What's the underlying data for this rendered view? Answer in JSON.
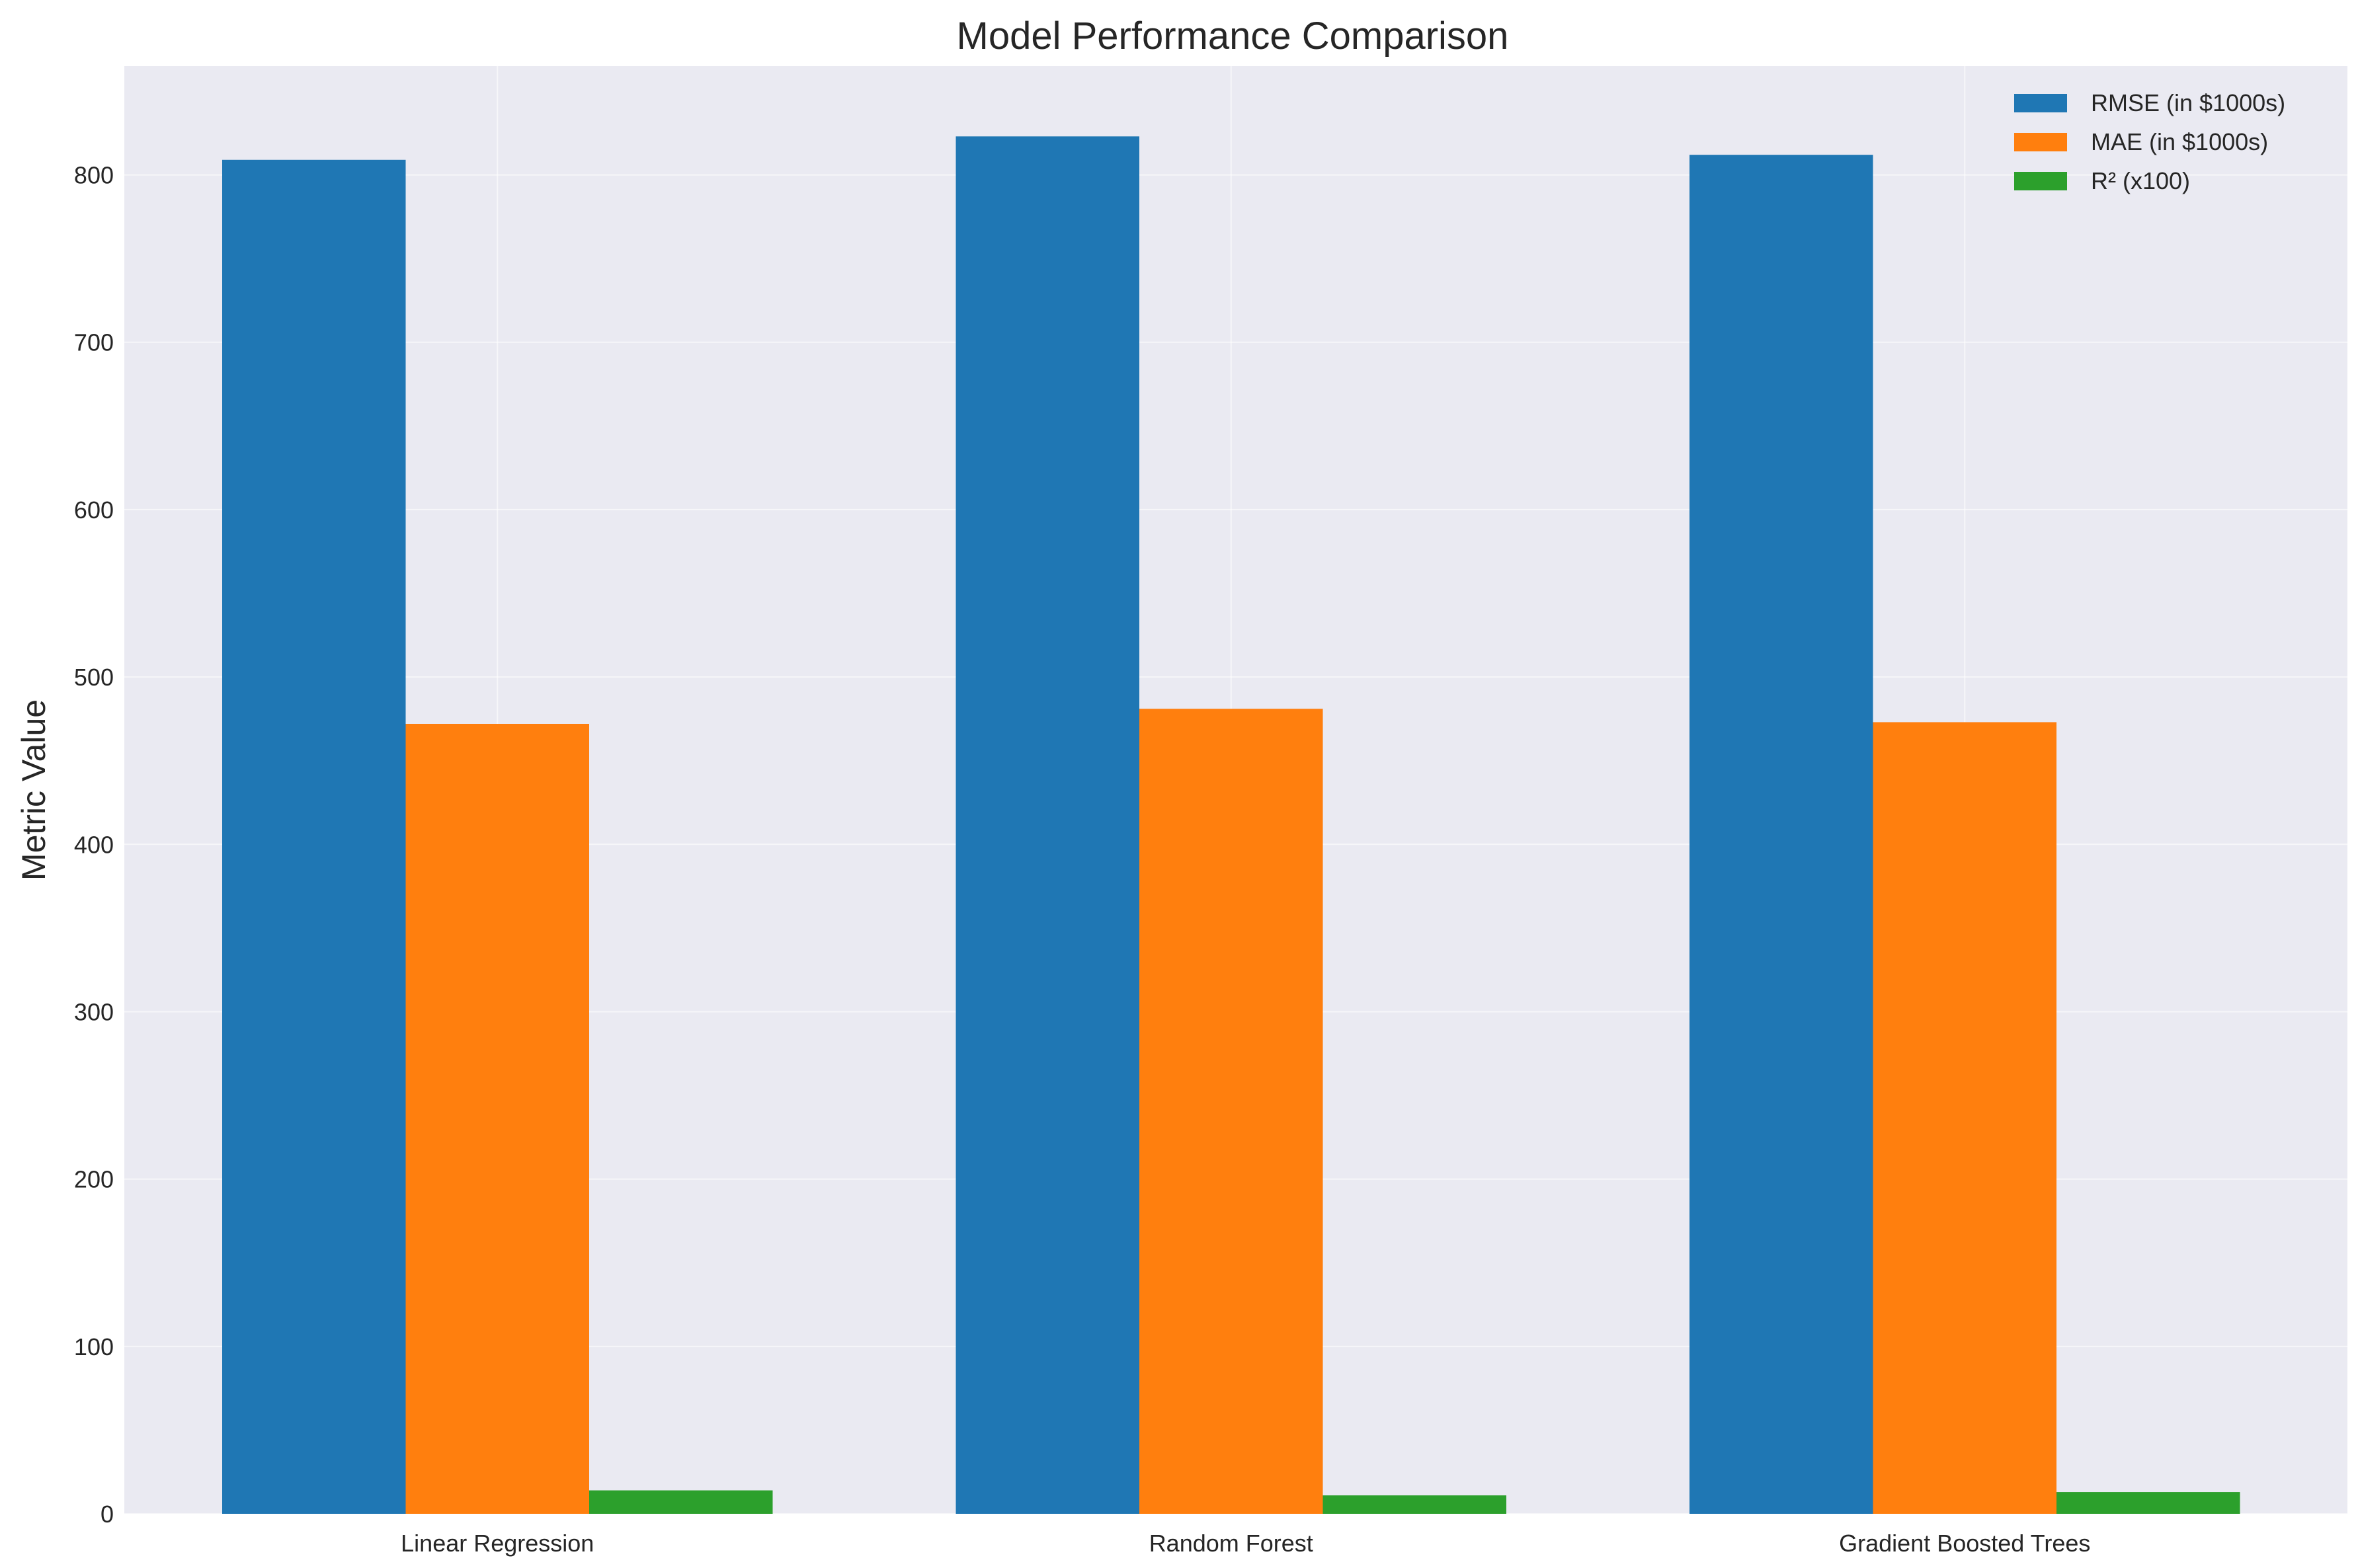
{
  "chart_data": {
    "type": "bar",
    "title": "Model Performance Comparison",
    "xlabel": "",
    "ylabel": "Metric Value",
    "categories": [
      "Linear Regression",
      "Random Forest",
      "Gradient Boosted Trees"
    ],
    "series": [
      {
        "name": "RMSE (in $1000s)",
        "values": [
          809,
          823,
          812
        ],
        "color": "#1f77b4"
      },
      {
        "name": "MAE (in $1000s)",
        "values": [
          472,
          481,
          473
        ],
        "color": "#ff7f0e"
      },
      {
        "name": "R² (x100)",
        "values": [
          14,
          11,
          13
        ],
        "color": "#2ca02c"
      }
    ],
    "ylim": [
      0,
      865
    ],
    "yticks": [
      0,
      100,
      200,
      300,
      400,
      500,
      600,
      700,
      800
    ],
    "grid": true,
    "legend_position": "top-right",
    "background": "#eaeaf2"
  }
}
